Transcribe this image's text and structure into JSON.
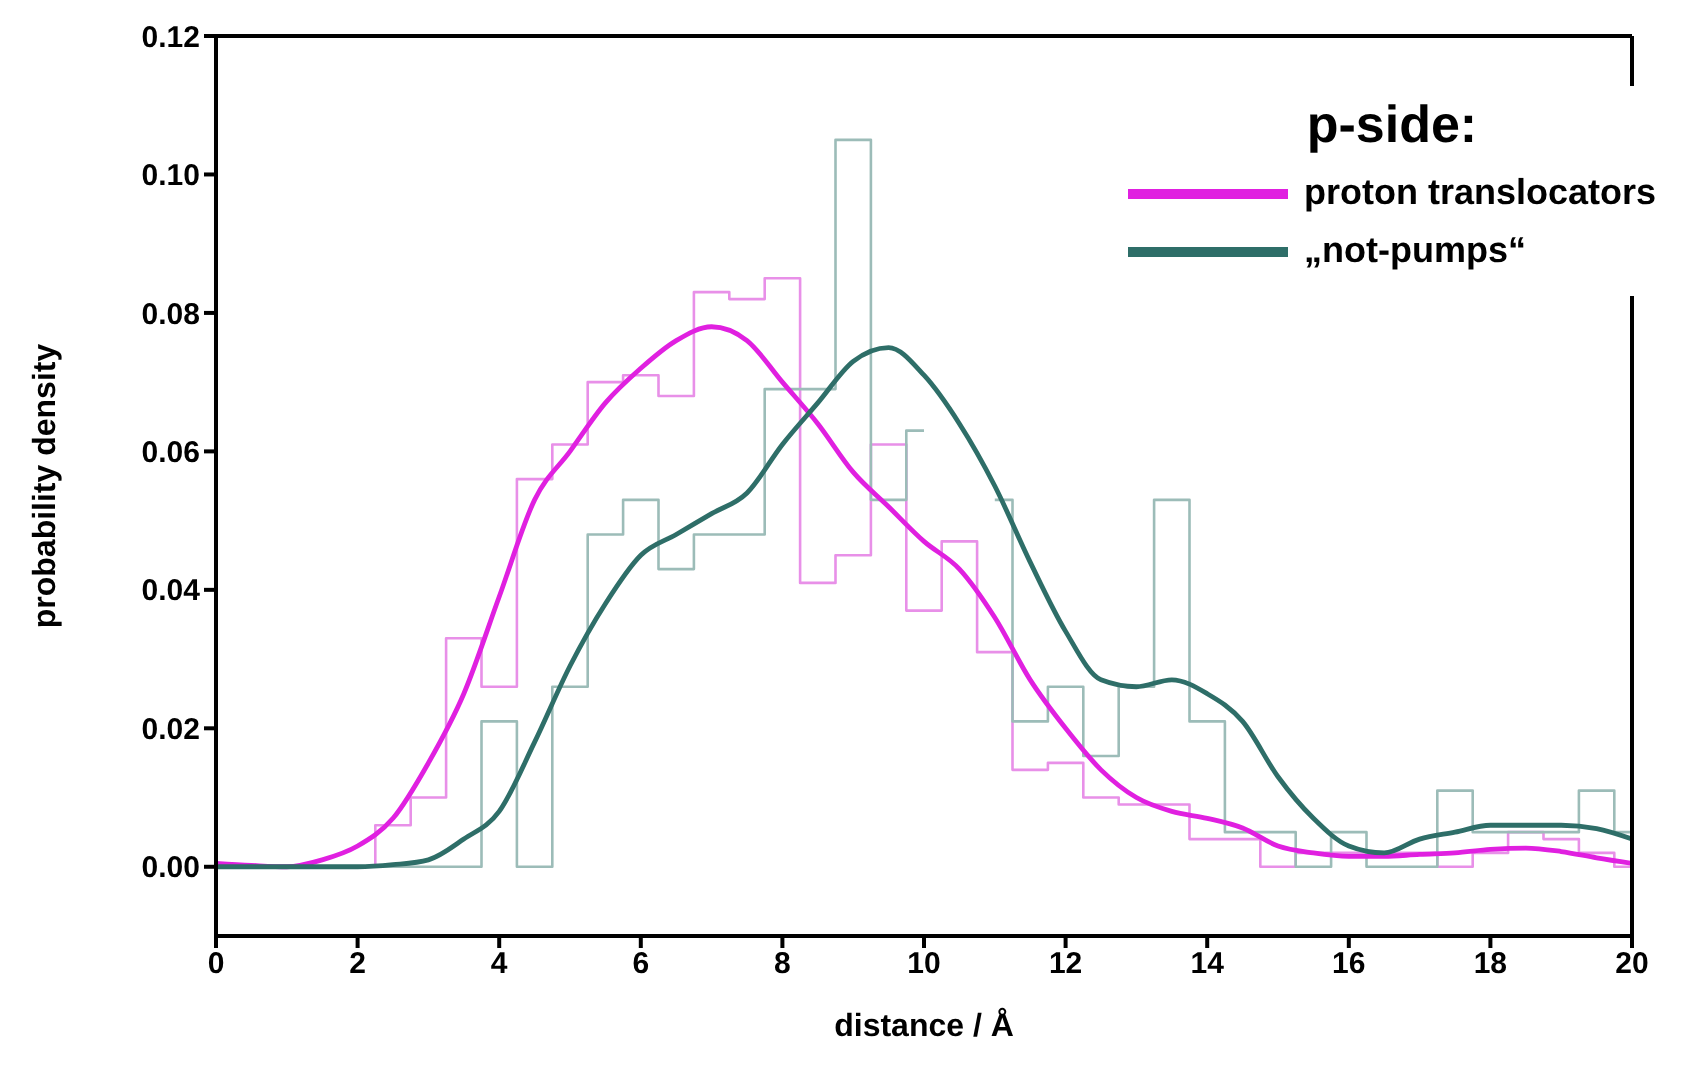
{
  "chart_data": {
    "type": "line",
    "xlabel": "distance / Å",
    "ylabel": "probability density",
    "legend_title": "p-side:",
    "x": [
      0,
      0.5,
      1,
      1.5,
      2,
      2.5,
      3,
      3.5,
      4,
      4.5,
      5,
      5.5,
      6,
      6.5,
      7,
      7.5,
      8,
      8.5,
      9,
      9.5,
      10,
      10.5,
      11,
      11.5,
      12,
      12.5,
      13,
      13.5,
      14,
      14.5,
      15,
      15.5,
      16,
      16.5,
      17,
      17.5,
      18,
      18.5,
      19,
      19.5,
      20
    ],
    "series": [
      {
        "type": "step",
        "color": "#e890e8",
        "values": [
          0,
          0,
          0,
          0,
          0,
          0.006,
          0.01,
          0.033,
          0.026,
          0.056,
          0.061,
          0.07,
          0.071,
          0.068,
          0.083,
          0.082,
          0.085,
          0.041,
          0.045,
          0.061,
          0.037,
          0.047,
          0.031,
          0.014,
          0.015,
          0.01,
          0.009,
          0.009,
          0.004,
          0.004,
          0,
          0.002,
          0.002,
          0.002,
          0.002,
          0,
          0.002,
          0.005,
          0.004,
          0.002,
          0
        ]
      },
      {
        "type": "step",
        "color": "#9cbcb8",
        "values": [
          0,
          0,
          0,
          0,
          0,
          0,
          0,
          0,
          0.021,
          0,
          0.026,
          0.048,
          0.053,
          0.043,
          0.048,
          0.048,
          0.069,
          0.069,
          0.105,
          0.053,
          0.063,
          null,
          0.053,
          0.021,
          0.026,
          0.016,
          0.026,
          0.053,
          0.021,
          0.005,
          0.005,
          0,
          0.005,
          0,
          0,
          0.011,
          0.005,
          0.005,
          0.005,
          0.011,
          0.005
        ]
      },
      {
        "type": "line",
        "name": "proton translocators",
        "color": "#e020e0",
        "values": [
          0.0005,
          0.0002,
          0,
          0.001,
          0.003,
          0.007,
          0.015,
          0.025,
          0.039,
          0.053,
          0.06,
          0.067,
          0.072,
          0.076,
          0.078,
          0.076,
          0.07,
          0.064,
          0.057,
          0.052,
          0.047,
          0.043,
          0.036,
          0.027,
          0.02,
          0.014,
          0.01,
          0.008,
          0.007,
          0.0056,
          0.003,
          0.002,
          0.0015,
          0.0015,
          0.0018,
          0.002,
          0.0025,
          0.0027,
          0.0022,
          0.0013,
          0.0005
        ]
      },
      {
        "type": "line",
        "name": "„not-pumps“",
        "color": "#2e6e68",
        "values": [
          0,
          0,
          0,
          0,
          0,
          0.0003,
          0.001,
          0.004,
          0.008,
          0.018,
          0.029,
          0.038,
          0.045,
          0.048,
          0.051,
          0.054,
          0.061,
          0.067,
          0.073,
          0.075,
          0.071,
          0.064,
          0.055,
          0.044,
          0.034,
          0.027,
          0.026,
          0.027,
          0.025,
          0.021,
          0.013,
          0.007,
          0.003,
          0.002,
          0.004,
          0.005,
          0.006,
          0.006,
          0.006,
          0.0055,
          0.004
        ]
      }
    ],
    "xlim": [
      0,
      20
    ],
    "xticks": [
      0,
      2,
      4,
      6,
      8,
      10,
      12,
      14,
      16,
      18,
      20
    ],
    "ylim": [
      -0.01,
      0.12
    ],
    "yticks": [
      {
        "value": 0,
        "label": "0.00"
      },
      {
        "value": 0.02,
        "label": "0.02"
      },
      {
        "value": 0.04,
        "label": "0.04"
      },
      {
        "value": 0.06,
        "label": "0.06"
      },
      {
        "value": 0.08,
        "label": "0.08"
      },
      {
        "value": 0.1,
        "label": "0.10"
      },
      {
        "value": 0.12,
        "label": "0.12"
      }
    ],
    "grid": false,
    "legend": "top right",
    "marker": "none",
    "line_style": "solid"
  }
}
